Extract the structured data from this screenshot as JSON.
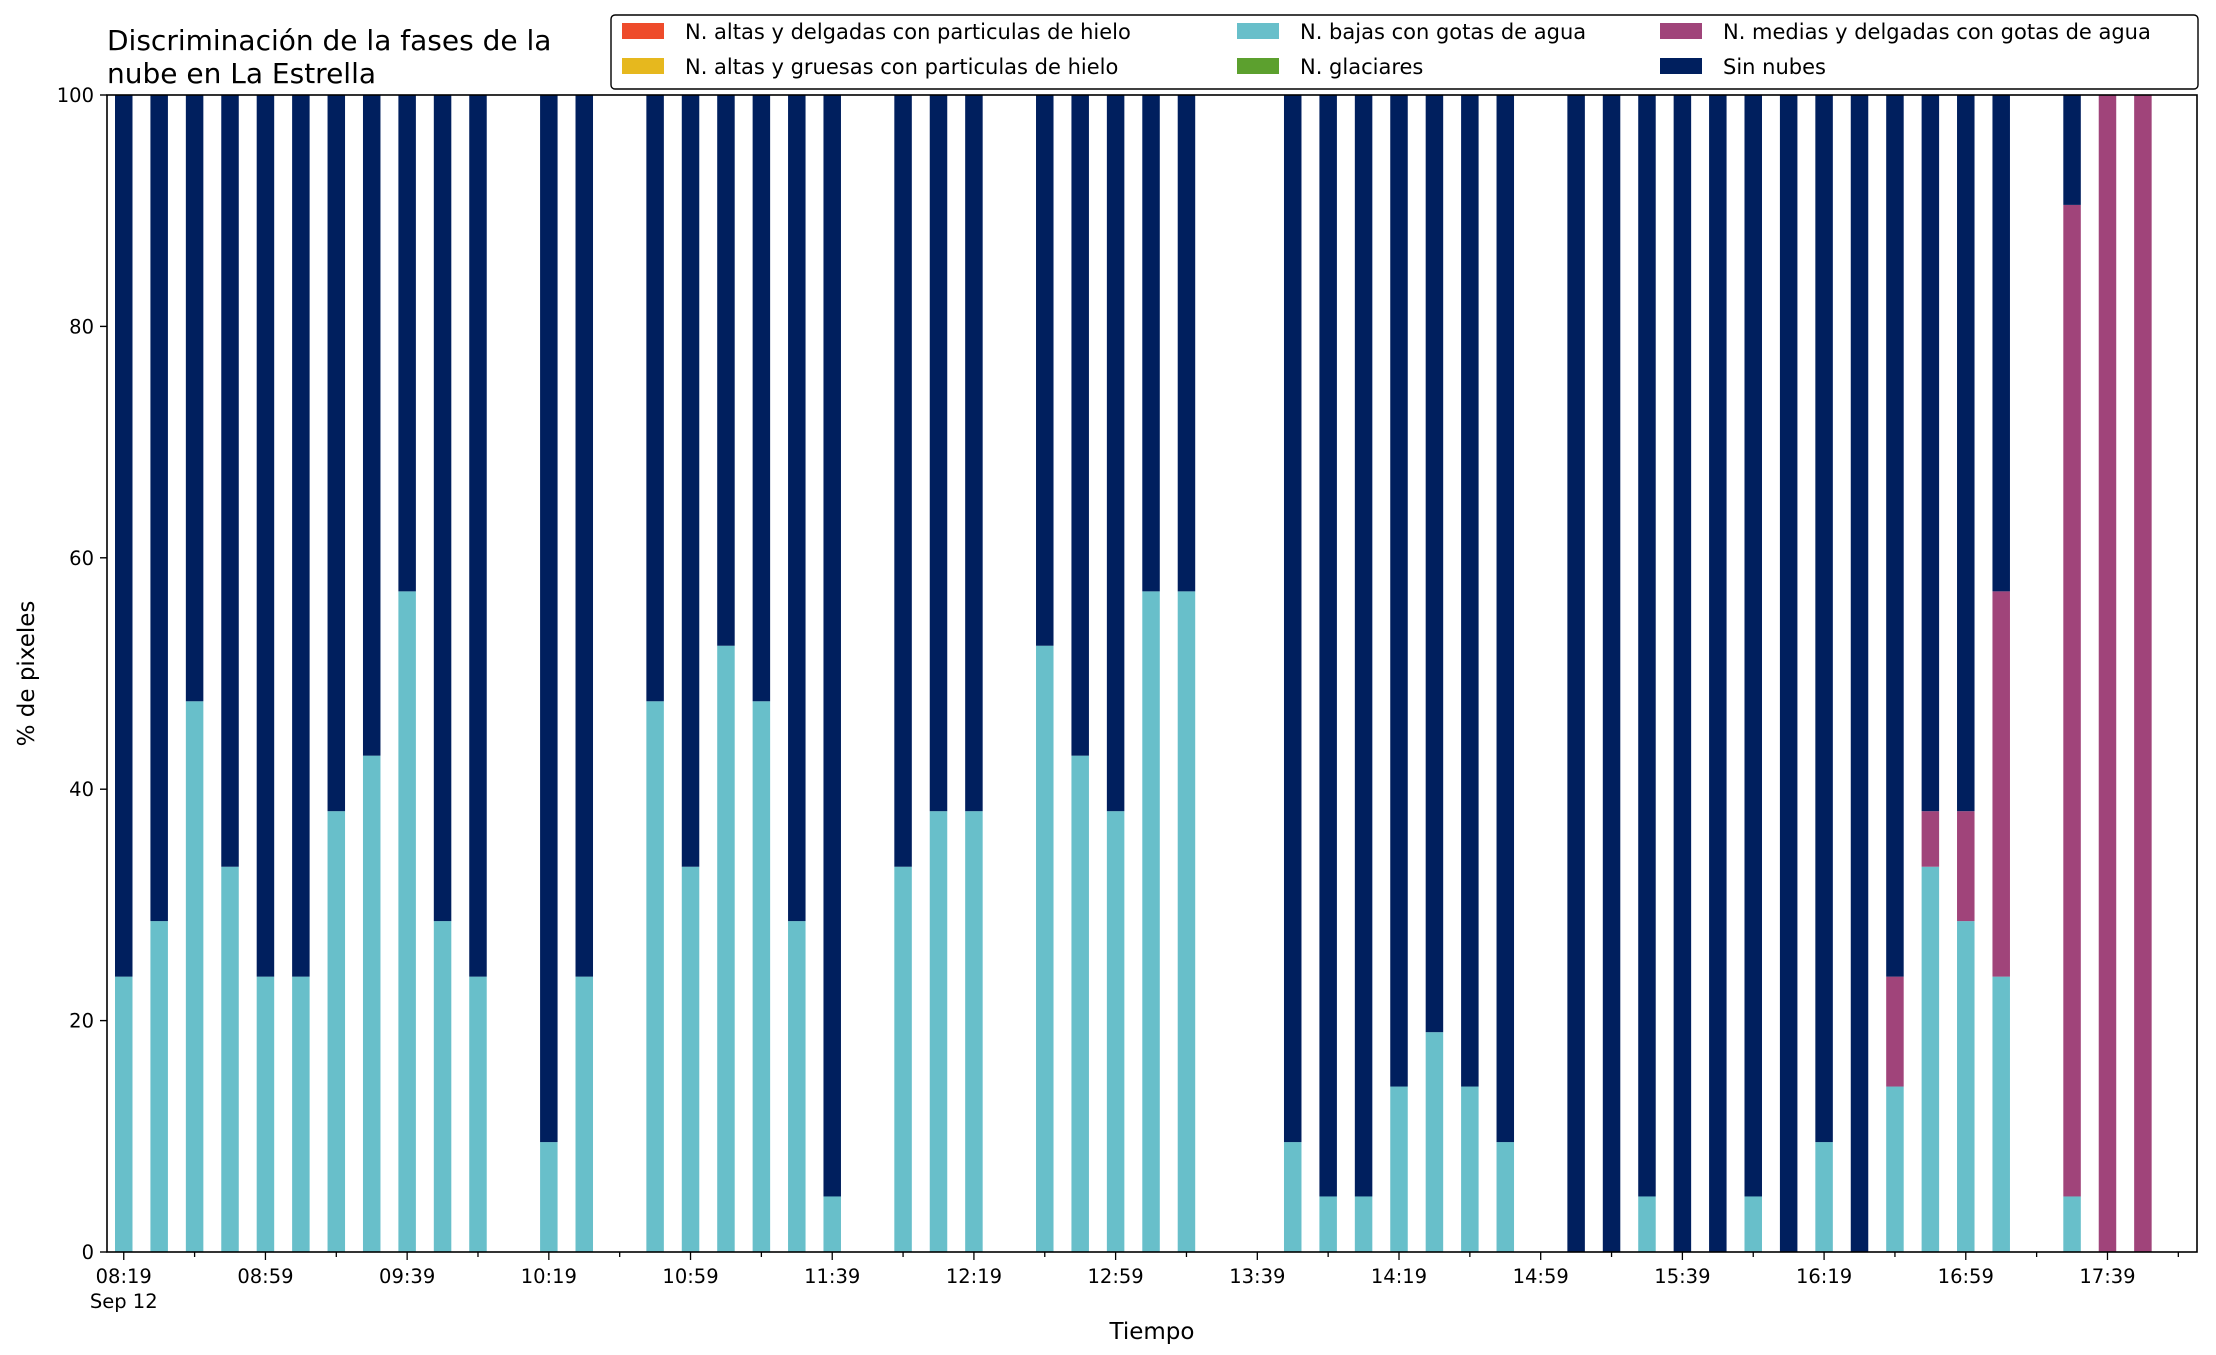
{
  "chart_data": {
    "type": "bar",
    "stacked": true,
    "title_lines": [
      "Discriminación de la fases de la",
      "nube en La Estrella"
    ],
    "xlabel": "Tiempo",
    "ylabel": "% de pixeles",
    "ylim": [
      0,
      100
    ],
    "yticks": [
      0,
      20,
      40,
      60,
      80,
      100
    ],
    "grid": false,
    "legend_position": "top-right",
    "x_axis": {
      "start": "08:19",
      "step_minutes": 5,
      "count": 59,
      "tick_labels": [
        {
          "index": 0,
          "label": "08:19",
          "sublabel": "Sep 12"
        },
        {
          "index": 8,
          "label": "08:59"
        },
        {
          "index": 16,
          "label": "09:39"
        },
        {
          "index": 24,
          "label": "10:19"
        },
        {
          "index": 32,
          "label": "10:59"
        },
        {
          "index": 40,
          "label": "11:39"
        },
        {
          "index": 48,
          "label": "12:19"
        },
        {
          "index": 56,
          "label": "12:59"
        },
        {
          "index": 64,
          "label": "13:39"
        },
        {
          "index": 72,
          "label": "14:19"
        },
        {
          "index": 80,
          "label": "14:59"
        },
        {
          "index": 88,
          "label": "15:39"
        },
        {
          "index": 96,
          "label": "16:19"
        },
        {
          "index": 104,
          "label": "16:59"
        },
        {
          "index": 112,
          "label": "17:39"
        }
      ]
    },
    "legend_order": [
      0,
      1,
      2,
      3,
      4,
      5
    ],
    "series": [
      {
        "name": "N. altas y delgadas con particulas de hielo",
        "color": "#ee4b2b",
        "values": []
      },
      {
        "name": "N. altas y gruesas con particulas de hielo",
        "color": "#e6b81e",
        "values": []
      },
      {
        "name": "N. bajas con gotas de agua",
        "color": "#68bfca",
        "values": [
          {
            "i": 0,
            "v": 23.8
          },
          {
            "i": 2,
            "v": 28.6
          },
          {
            "i": 4,
            "v": 47.6
          },
          {
            "i": 6,
            "v": 33.3
          },
          {
            "i": 8,
            "v": 23.8
          },
          {
            "i": 10,
            "v": 23.8
          },
          {
            "i": 12,
            "v": 38.1
          },
          {
            "i": 14,
            "v": 42.9
          },
          {
            "i": 16,
            "v": 57.1
          },
          {
            "i": 18,
            "v": 28.6
          },
          {
            "i": 20,
            "v": 23.8
          },
          {
            "i": 24,
            "v": 9.5
          },
          {
            "i": 26,
            "v": 23.8
          },
          {
            "i": 30,
            "v": 47.6
          },
          {
            "i": 32,
            "v": 33.3
          },
          {
            "i": 34,
            "v": 52.4
          },
          {
            "i": 36,
            "v": 47.6
          },
          {
            "i": 38,
            "v": 28.6
          },
          {
            "i": 40,
            "v": 4.8
          },
          {
            "i": 44,
            "v": 33.3
          },
          {
            "i": 46,
            "v": 38.1
          },
          {
            "i": 48,
            "v": 38.1
          },
          {
            "i": 52,
            "v": 52.4
          },
          {
            "i": 54,
            "v": 42.9
          },
          {
            "i": 56,
            "v": 38.1
          },
          {
            "i": 58,
            "v": 57.1
          },
          {
            "i": 60,
            "v": 57.1
          },
          {
            "i": 66,
            "v": 9.5
          },
          {
            "i": 68,
            "v": 4.8
          },
          {
            "i": 70,
            "v": 4.8
          },
          {
            "i": 72,
            "v": 14.3
          },
          {
            "i": 74,
            "v": 19.0
          },
          {
            "i": 76,
            "v": 14.3
          },
          {
            "i": 78,
            "v": 9.5
          },
          {
            "i": 82,
            "v": 0
          },
          {
            "i": 84,
            "v": 0
          },
          {
            "i": 86,
            "v": 4.8
          },
          {
            "i": 88,
            "v": 0
          },
          {
            "i": 90,
            "v": 0
          },
          {
            "i": 92,
            "v": 4.8
          },
          {
            "i": 94,
            "v": 0
          },
          {
            "i": 96,
            "v": 9.5
          },
          {
            "i": 98,
            "v": 0
          },
          {
            "i": 100,
            "v": 14.3
          },
          {
            "i": 102,
            "v": 33.3
          },
          {
            "i": 104,
            "v": 28.6
          },
          {
            "i": 106,
            "v": 23.8
          },
          {
            "i": 110,
            "v": 4.8
          },
          {
            "i": 112,
            "v": 0
          },
          {
            "i": 114,
            "v": 0
          }
        ]
      },
      {
        "name": "N. glaciares",
        "color": "#5ca02e",
        "values": []
      },
      {
        "name": "N. medias y delgadas con gotas de agua",
        "color": "#a0447a",
        "values": [
          {
            "i": 100,
            "v": 9.5
          },
          {
            "i": 102,
            "v": 4.8
          },
          {
            "i": 104,
            "v": 9.5
          },
          {
            "i": 106,
            "v": 33.3
          },
          {
            "i": 110,
            "v": 85.7
          },
          {
            "i": 112,
            "v": 100
          },
          {
            "i": 114,
            "v": 100
          }
        ]
      },
      {
        "name": "Sin nubes",
        "color": "#001f5e",
        "values": [
          {
            "i": 0,
            "v": 76.2
          },
          {
            "i": 2,
            "v": 71.4
          },
          {
            "i": 4,
            "v": 52.4
          },
          {
            "i": 6,
            "v": 66.7
          },
          {
            "i": 8,
            "v": 76.2
          },
          {
            "i": 10,
            "v": 76.2
          },
          {
            "i": 12,
            "v": 61.9
          },
          {
            "i": 14,
            "v": 57.1
          },
          {
            "i": 16,
            "v": 42.9
          },
          {
            "i": 18,
            "v": 71.4
          },
          {
            "i": 20,
            "v": 76.2
          },
          {
            "i": 24,
            "v": 90.5
          },
          {
            "i": 26,
            "v": 76.2
          },
          {
            "i": 30,
            "v": 52.4
          },
          {
            "i": 32,
            "v": 66.7
          },
          {
            "i": 34,
            "v": 47.6
          },
          {
            "i": 36,
            "v": 52.4
          },
          {
            "i": 38,
            "v": 71.4
          },
          {
            "i": 40,
            "v": 95.2
          },
          {
            "i": 44,
            "v": 66.7
          },
          {
            "i": 46,
            "v": 61.9
          },
          {
            "i": 48,
            "v": 61.9
          },
          {
            "i": 52,
            "v": 47.6
          },
          {
            "i": 54,
            "v": 57.1
          },
          {
            "i": 56,
            "v": 61.9
          },
          {
            "i": 58,
            "v": 42.9
          },
          {
            "i": 60,
            "v": 42.9
          },
          {
            "i": 66,
            "v": 90.5
          },
          {
            "i": 68,
            "v": 95.2
          },
          {
            "i": 70,
            "v": 95.2
          },
          {
            "i": 72,
            "v": 85.7
          },
          {
            "i": 74,
            "v": 81.0
          },
          {
            "i": 76,
            "v": 85.7
          },
          {
            "i": 78,
            "v": 90.5
          },
          {
            "i": 82,
            "v": 100
          },
          {
            "i": 84,
            "v": 100
          },
          {
            "i": 86,
            "v": 95.2
          },
          {
            "i": 88,
            "v": 100
          },
          {
            "i": 90,
            "v": 100
          },
          {
            "i": 92,
            "v": 95.2
          },
          {
            "i": 94,
            "v": 100
          },
          {
            "i": 96,
            "v": 90.5
          },
          {
            "i": 98,
            "v": 100
          },
          {
            "i": 100,
            "v": 76.2
          },
          {
            "i": 102,
            "v": 61.9
          },
          {
            "i": 104,
            "v": 61.9
          },
          {
            "i": 106,
            "v": 42.9
          },
          {
            "i": 110,
            "v": 9.5
          },
          {
            "i": 112,
            "v": 0
          },
          {
            "i": 114,
            "v": 0
          }
        ]
      }
    ]
  }
}
